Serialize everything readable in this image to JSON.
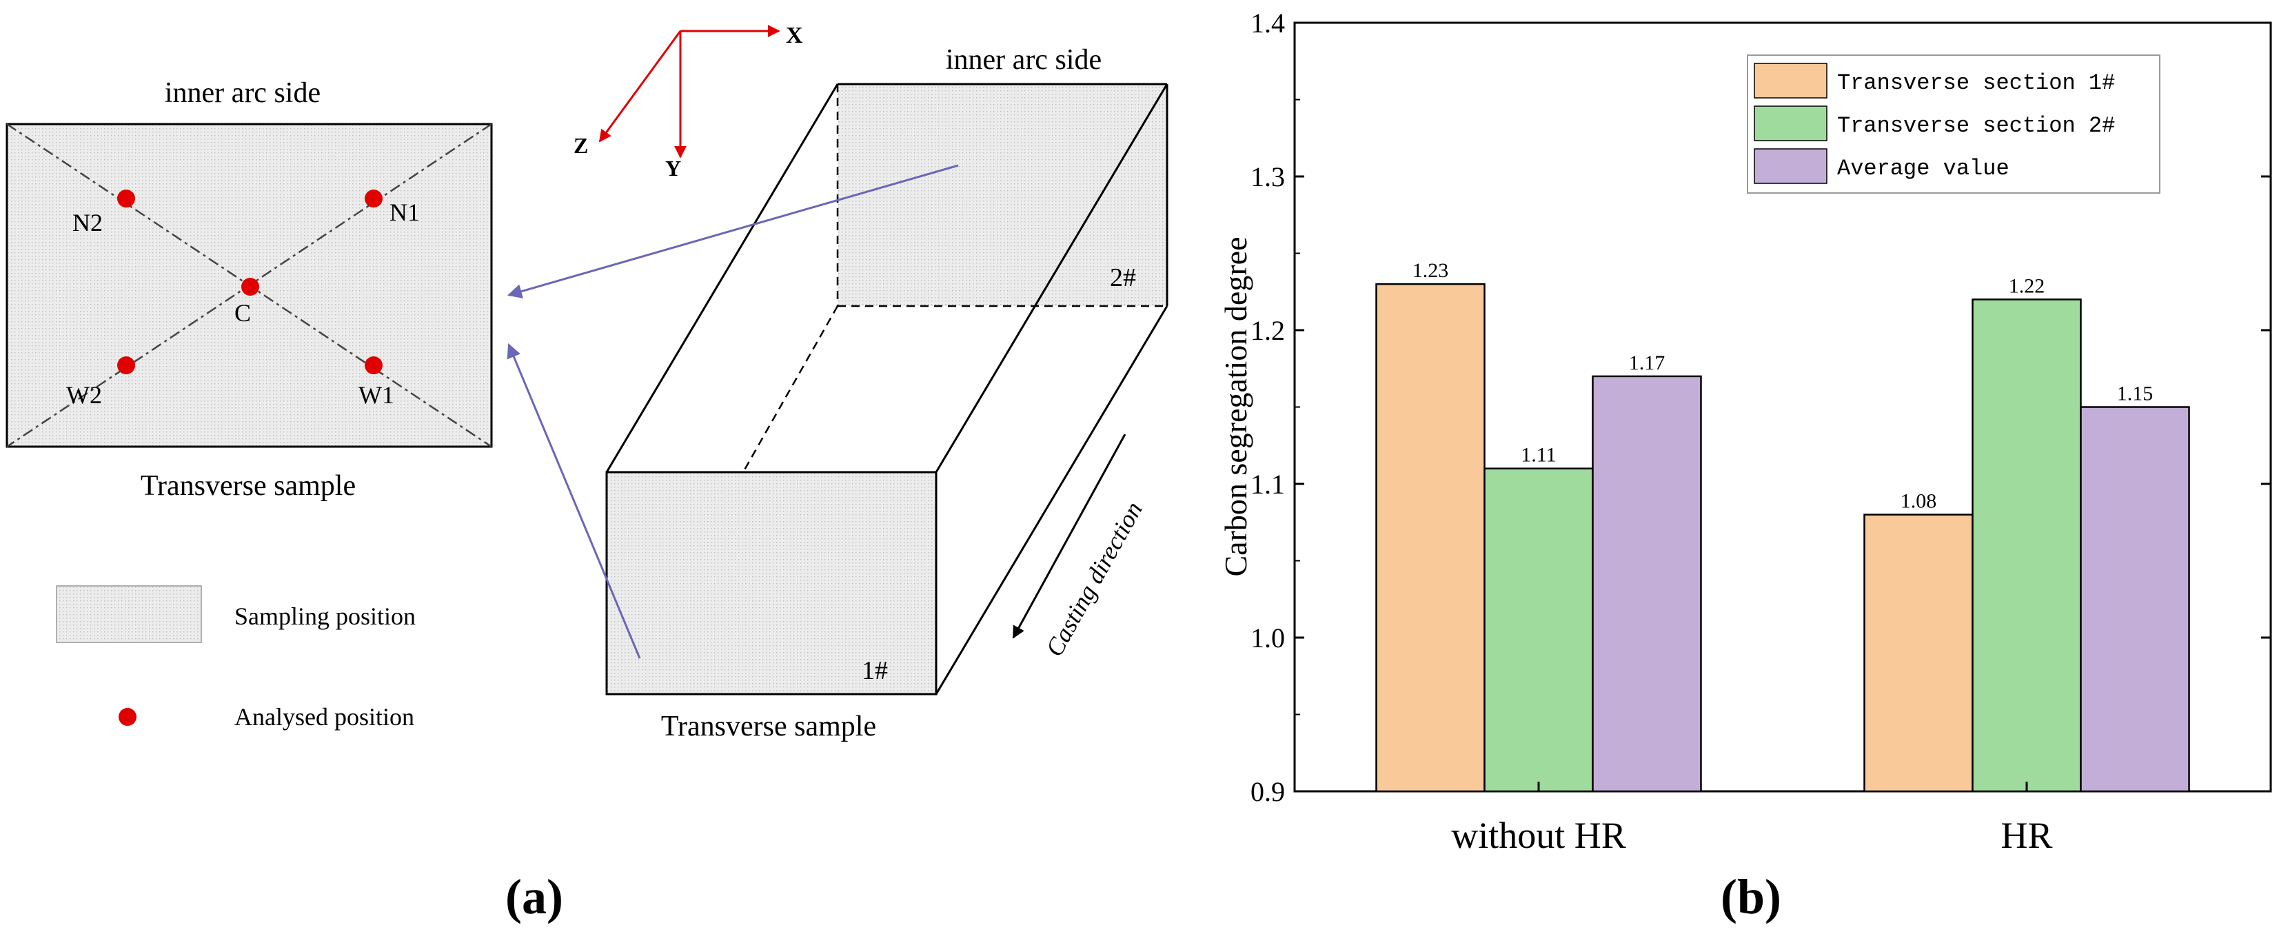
{
  "colors": {
    "sampling_fill": "#e8e8e8",
    "point_red": "#e00000",
    "arrow_blue": "#6a66b8",
    "axis_red": "#e00000",
    "series": [
      "#f9c99a",
      "#9edb9c",
      "#c3aed8"
    ]
  },
  "panel_a": {
    "caption": "(a)",
    "axes": {
      "x": "X",
      "y": "Y",
      "z": "Z"
    },
    "sample_view": {
      "top_label": "inner arc side",
      "bottom_label": "Transverse sample",
      "points": [
        {
          "id": "N2"
        },
        {
          "id": "N1"
        },
        {
          "id": "C"
        },
        {
          "id": "W2"
        },
        {
          "id": "W1"
        }
      ]
    },
    "block_view": {
      "top_label": "inner arc side",
      "bottom_label": "Transverse sample",
      "section_front": "1#",
      "section_back": "2#",
      "casting_direction": "Casting direction"
    },
    "legend": {
      "sampling": "Sampling position",
      "analysed": "Analysed position"
    }
  },
  "panel_b": {
    "caption": "(b)"
  },
  "chart_data": {
    "type": "bar",
    "categories": [
      "without HR",
      "HR"
    ],
    "series": [
      {
        "name": "Transverse section 1#",
        "values": [
          1.23,
          1.08
        ]
      },
      {
        "name": "Transverse section 2#",
        "values": [
          1.11,
          1.22
        ]
      },
      {
        "name": "Average value",
        "values": [
          1.17,
          1.15
        ]
      }
    ],
    "ylabel": "Carbon segregation degree",
    "xlabel": "",
    "ylim": [
      0.9,
      1.4
    ],
    "yticks": [
      "0.9",
      "1.0",
      "1.1",
      "1.2",
      "1.3",
      "1.4"
    ],
    "data_labels": [
      [
        "1.23",
        "1.08"
      ],
      [
        "1.11",
        "1.22"
      ],
      [
        "1.17",
        "1.15"
      ]
    ],
    "legend_position": "top-right",
    "grid": false
  }
}
